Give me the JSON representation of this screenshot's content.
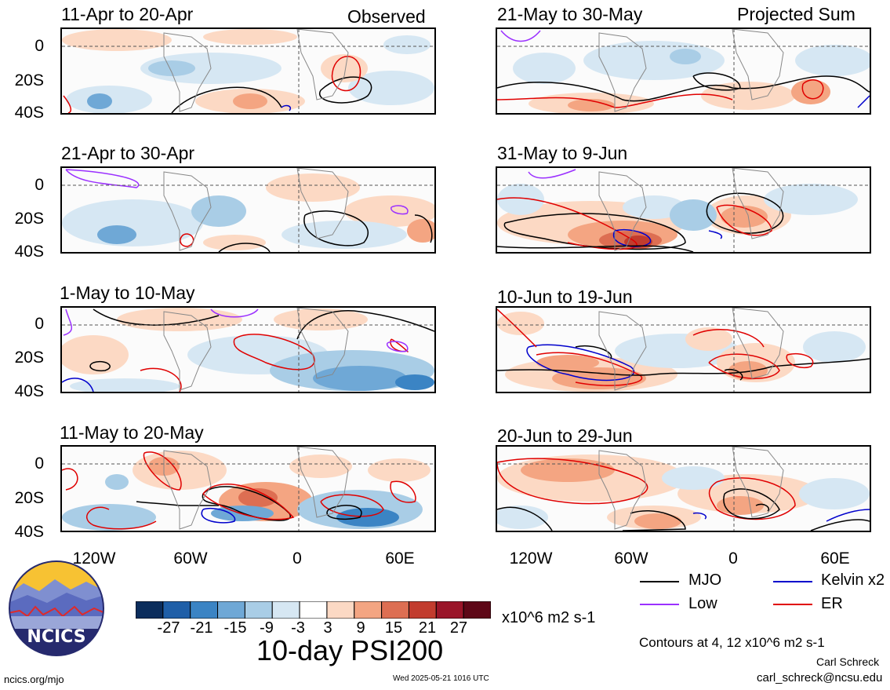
{
  "panels": [
    {
      "id": "p1",
      "title": "11-Apr to 20-Apr",
      "corner": "Observed"
    },
    {
      "id": "p2",
      "title": "21-Apr to 30-Apr",
      "corner": ""
    },
    {
      "id": "p3",
      "title": "1-May to 10-May",
      "corner": ""
    },
    {
      "id": "p4",
      "title": "11-May to 20-May",
      "corner": ""
    },
    {
      "id": "p5",
      "title": "21-May to 30-May",
      "corner": "Projected Sum"
    },
    {
      "id": "p6",
      "title": "31-May to 9-Jun",
      "corner": ""
    },
    {
      "id": "p7",
      "title": "10-Jun to 19-Jun",
      "corner": ""
    },
    {
      "id": "p8",
      "title": "20-Jun to 29-Jun",
      "corner": ""
    }
  ],
  "lat_labels": [
    "0",
    "20S",
    "40S"
  ],
  "lon_labels": [
    "120W",
    "60W",
    "0",
    "60E"
  ],
  "legend": {
    "mjo": "MJO",
    "low": "Low",
    "kelvin": "Kelvin x2",
    "er": "ER",
    "colors": {
      "mjo": "#000000",
      "low": "#9b30ff",
      "kelvin": "#0000cc",
      "er": "#e00000"
    }
  },
  "colorbar": {
    "labels": [
      "-27",
      "-21",
      "-15",
      "-9",
      "-3",
      "3",
      "9",
      "15",
      "21",
      "27"
    ],
    "colors": [
      "#0b2d5c",
      "#1f5fa8",
      "#3b84c4",
      "#6fa8d6",
      "#a9cde6",
      "#d6e7f3",
      "#ffffff",
      "#fcd9c4",
      "#f4a582",
      "#dd6e52",
      "#c23c2e",
      "#9a1529",
      "#5e0717"
    ],
    "units": "x10^6 m2 s-1"
  },
  "title": "10-day PSI200",
  "contours_note": "Contours at 4, 12 x10^6 m2 s-1",
  "author": "Carl Schreck",
  "email": "carl_schreck@ncsu.edu",
  "site": "ncics.org/mjo",
  "timestamp": "Wed 2025-05-21 1016 UTC",
  "logo_text": "NCICS"
}
